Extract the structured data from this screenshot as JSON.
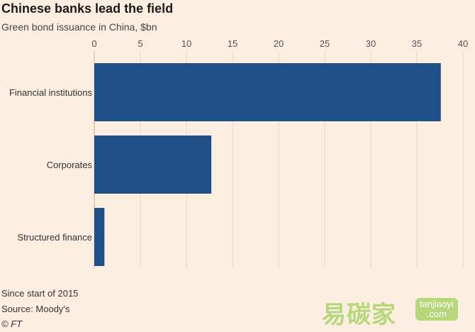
{
  "chart_data": {
    "type": "bar",
    "orientation": "horizontal",
    "title": "Chinese banks lead the field",
    "subtitle": "Green bond issuance in China, $bn",
    "categories": [
      "Financial institutions",
      "Corporates",
      "Structured finance"
    ],
    "values": [
      37.6,
      12.7,
      1.1
    ],
    "xlim": [
      0,
      40
    ],
    "xticks": [
      0,
      5,
      10,
      15,
      20,
      25,
      30,
      35,
      40
    ],
    "axis_position": "top",
    "grid": true,
    "bar_color": "#1f5087"
  },
  "footer": {
    "note": "Since start of 2015",
    "source": "Source: Moody's",
    "credit": "© FT"
  },
  "watermark": {
    "chinese": "易碳家",
    "badge_line1": "tanjiaoyi",
    "badge_line2": ".com"
  }
}
